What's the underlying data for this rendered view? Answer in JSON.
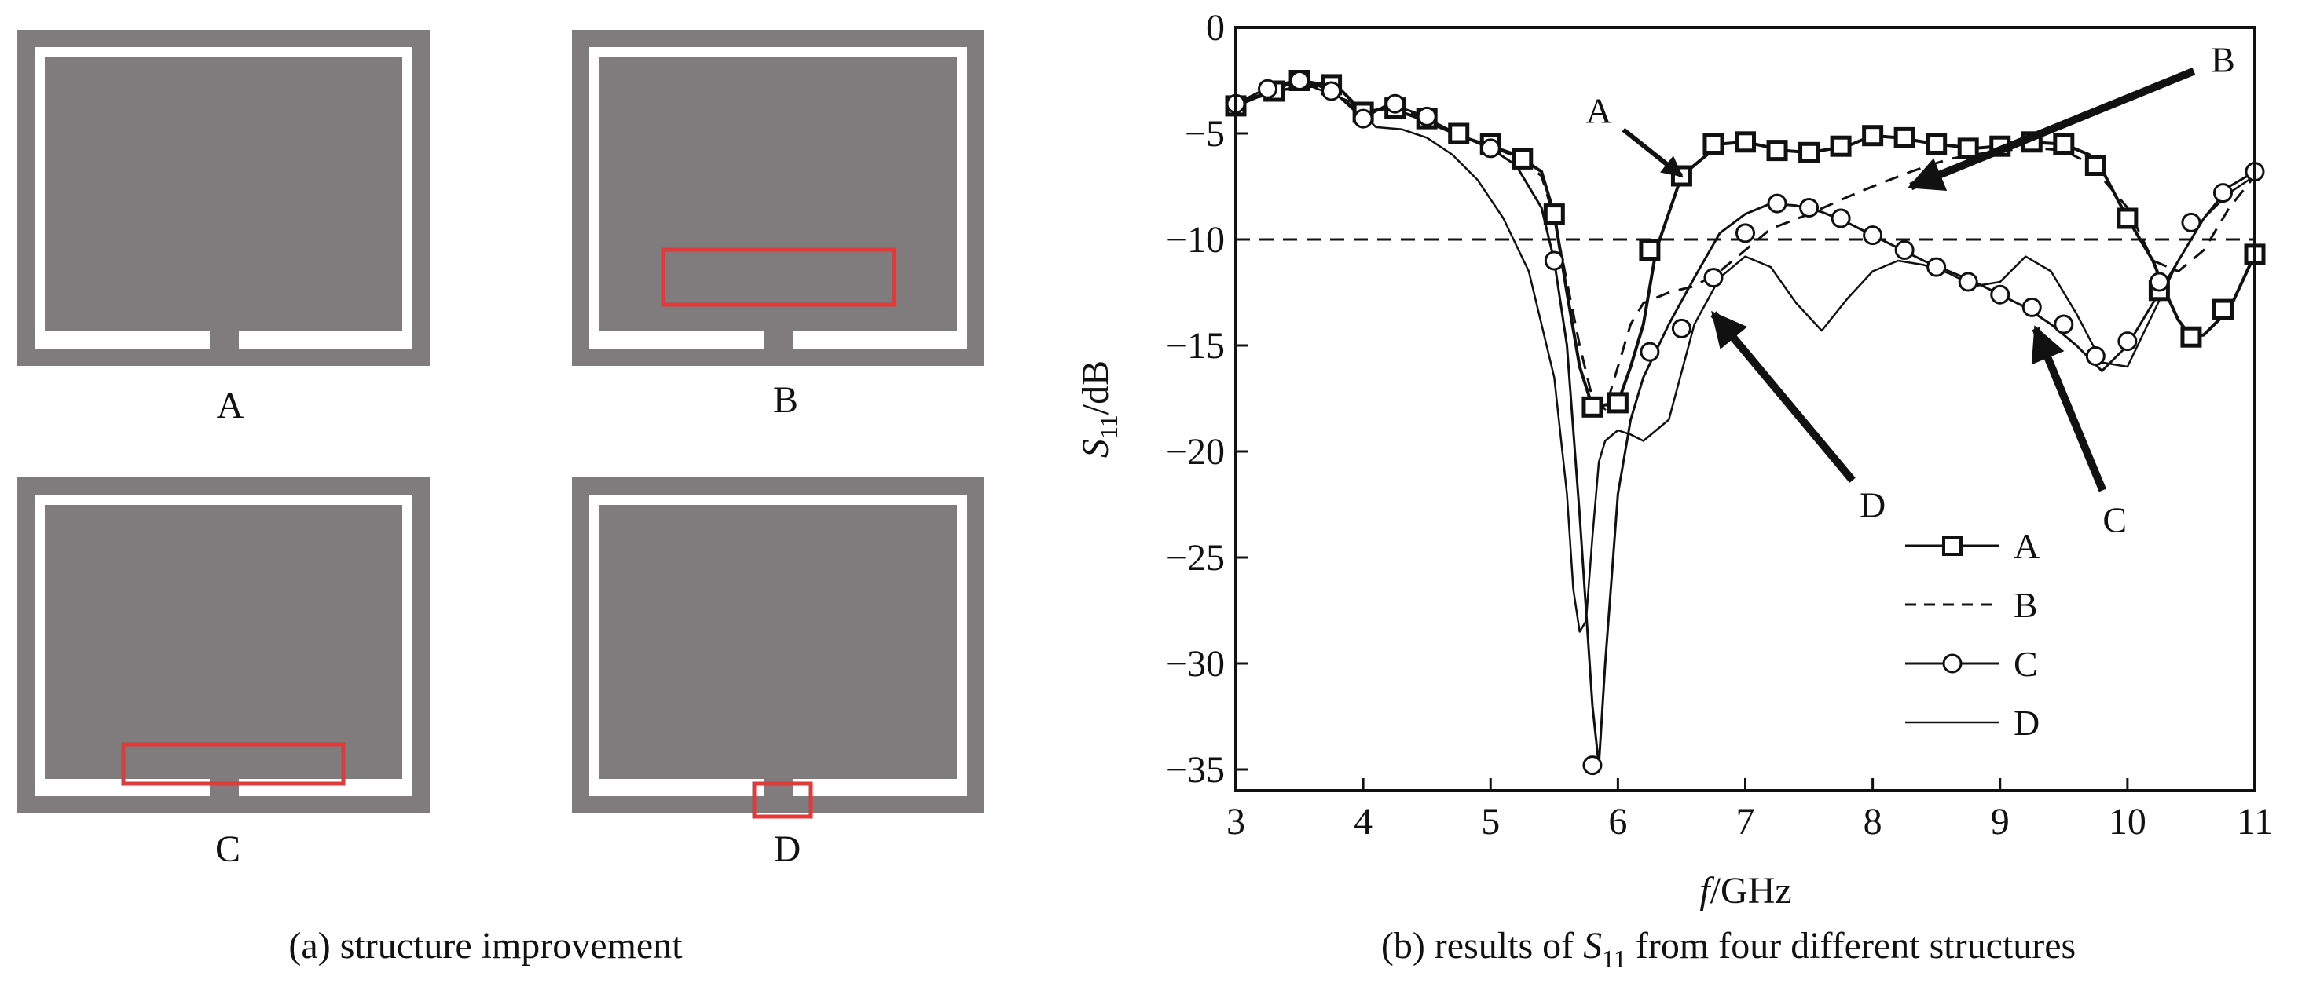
{
  "panel_a": {
    "caption": "(a) structure improvement",
    "structures": [
      {
        "label": "A",
        "highlight": "none"
      },
      {
        "label": "B",
        "highlight": "stubs on feed bar"
      },
      {
        "label": "C",
        "highlight": "split feed bar"
      },
      {
        "label": "D",
        "highlight": "feed gap"
      }
    ],
    "highlight_color": "#e03a3a",
    "antenna_color": "#807b7d"
  },
  "panel_b": {
    "caption_prefix": "(b) results of ",
    "caption_symbol": "S",
    "caption_sub": "11",
    "caption_suffix": " from four different structures"
  },
  "chart_data": {
    "type": "line",
    "xlabel_italic": "f",
    "xlabel_rest": "/GHz",
    "ylabel_italic": "S",
    "ylabel_sub": "11",
    "ylabel_rest": "/dB",
    "xlim": [
      3,
      11
    ],
    "ylim": [
      -36,
      0
    ],
    "x_ticks": [
      3,
      4,
      5,
      6,
      7,
      8,
      9,
      10,
      11
    ],
    "y_ticks": [
      0,
      -5,
      -10,
      -15,
      -20,
      -25,
      -30,
      -35
    ],
    "y_tick_labels": [
      "0",
      "−5",
      "−10",
      "−15",
      "−20",
      "−25",
      "−30",
      "−35"
    ],
    "grid": false,
    "reference_line": {
      "y": -10,
      "style": "dashed"
    },
    "legend_position": "bottom-right",
    "series": [
      {
        "name": "A",
        "style": "solid",
        "marker": "square",
        "x": [
          3.0,
          3.2,
          3.4,
          3.5,
          3.6,
          3.8,
          4.0,
          4.2,
          4.4,
          4.6,
          4.8,
          5.0,
          5.2,
          5.4,
          5.5,
          5.6,
          5.7,
          5.8,
          5.9,
          6.0,
          6.1,
          6.2,
          6.3,
          6.5,
          6.8,
          7.0,
          7.3,
          7.5,
          7.8,
          8.0,
          8.2,
          8.5,
          8.8,
          9.0,
          9.2,
          9.5,
          9.7,
          9.8,
          10.0,
          10.2,
          10.3,
          10.4,
          10.5,
          10.6,
          10.8,
          11.0
        ],
        "y": [
          -3.7,
          -3.2,
          -2.7,
          -2.5,
          -2.6,
          -2.8,
          -4.0,
          -3.8,
          -4.2,
          -4.7,
          -5.2,
          -5.6,
          -6.0,
          -6.8,
          -8.8,
          -12.5,
          -16.0,
          -17.9,
          -17.8,
          -17.7,
          -16.0,
          -14.0,
          -10.5,
          -7.0,
          -5.5,
          -5.4,
          -5.8,
          -5.9,
          -5.6,
          -5.1,
          -5.2,
          -5.5,
          -5.7,
          -5.6,
          -5.4,
          -5.5,
          -6.0,
          -6.7,
          -9.0,
          -11.0,
          -12.5,
          -13.8,
          -14.6,
          -14.5,
          -13.3,
          -10.7
        ],
        "marker_x": [
          3.0,
          3.3,
          3.5,
          3.75,
          4.0,
          4.25,
          4.5,
          4.75,
          5.0,
          5.25,
          5.5,
          5.8,
          6.0,
          6.25,
          6.5,
          6.75,
          7.0,
          7.25,
          7.5,
          7.75,
          8.0,
          8.25,
          8.5,
          8.75,
          9.0,
          9.25,
          9.5,
          9.75,
          10.0,
          10.25,
          10.5,
          10.75,
          11.0
        ],
        "marker_y": [
          -3.7,
          -3.0,
          -2.5,
          -2.7,
          -4.0,
          -3.8,
          -4.3,
          -5.0,
          -5.5,
          -6.2,
          -8.8,
          -17.9,
          -17.7,
          -10.5,
          -7.0,
          -5.5,
          -5.4,
          -5.8,
          -5.9,
          -5.6,
          -5.1,
          -5.2,
          -5.5,
          -5.7,
          -5.6,
          -5.4,
          -5.5,
          -6.5,
          -9.0,
          -12.4,
          -14.6,
          -13.3,
          -10.7
        ]
      },
      {
        "name": "B",
        "style": "dashed",
        "marker": "none",
        "x": [
          3.0,
          3.4,
          3.6,
          3.8,
          4.0,
          4.2,
          4.4,
          4.6,
          4.8,
          5.0,
          5.2,
          5.4,
          5.5,
          5.6,
          5.7,
          5.8,
          5.9,
          6.0,
          6.1,
          6.2,
          6.4,
          6.6,
          6.8,
          7.0,
          7.2,
          7.5,
          7.8,
          8.0,
          8.3,
          8.6,
          9.0,
          9.3,
          9.5,
          9.7,
          10.0,
          10.2,
          10.4,
          10.6,
          10.8,
          11.0
        ],
        "y": [
          -3.6,
          -2.9,
          -2.7,
          -3.2,
          -4.1,
          -3.7,
          -4.1,
          -4.6,
          -5.2,
          -5.6,
          -6.1,
          -7.0,
          -9.0,
          -12.0,
          -15.0,
          -17.5,
          -18.0,
          -16.0,
          -14.0,
          -13.0,
          -12.5,
          -12.2,
          -11.5,
          -10.5,
          -9.5,
          -8.8,
          -8.0,
          -7.5,
          -6.8,
          -6.2,
          -5.8,
          -5.7,
          -5.8,
          -6.4,
          -8.5,
          -11.0,
          -11.5,
          -10.5,
          -8.5,
          -7.0
        ]
      },
      {
        "name": "C",
        "style": "solid",
        "marker": "circle",
        "x": [
          3.0,
          3.2,
          3.4,
          3.5,
          3.6,
          3.8,
          4.0,
          4.2,
          4.4,
          4.6,
          4.8,
          5.0,
          5.2,
          5.4,
          5.5,
          5.6,
          5.7,
          5.8,
          5.85,
          5.9,
          6.0,
          6.1,
          6.2,
          6.4,
          6.6,
          6.8,
          7.0,
          7.2,
          7.4,
          7.6,
          7.8,
          8.0,
          8.2,
          8.4,
          8.6,
          8.8,
          9.0,
          9.2,
          9.4,
          9.6,
          9.8,
          10.0,
          10.2,
          10.4,
          10.6,
          10.8,
          11.0
        ],
        "y": [
          -3.6,
          -3.0,
          -2.6,
          -2.5,
          -2.6,
          -3.2,
          -4.3,
          -3.6,
          -4.0,
          -4.6,
          -5.2,
          -5.7,
          -6.5,
          -8.5,
          -11.0,
          -15.0,
          -23.0,
          -32.0,
          -34.8,
          -30.0,
          -22.0,
          -18.5,
          -16.5,
          -14.0,
          -11.8,
          -9.7,
          -8.8,
          -8.3,
          -8.4,
          -8.7,
          -9.2,
          -9.8,
          -10.4,
          -11.0,
          -11.5,
          -12.0,
          -12.6,
          -13.2,
          -14.0,
          -15.0,
          -16.2,
          -15.0,
          -13.0,
          -11.0,
          -9.0,
          -7.5,
          -6.8
        ],
        "marker_x": [
          3.0,
          3.25,
          3.5,
          3.75,
          4.0,
          4.25,
          4.5,
          5.0,
          5.5,
          5.8,
          6.25,
          6.5,
          6.75,
          7.0,
          7.25,
          7.5,
          7.75,
          8.0,
          8.25,
          8.5,
          8.75,
          9.0,
          9.25,
          9.5,
          9.75,
          10.0,
          10.25,
          10.5,
          10.75,
          11.0
        ],
        "marker_y": [
          -3.6,
          -2.9,
          -2.5,
          -3.0,
          -4.3,
          -3.6,
          -4.2,
          -5.7,
          -11.0,
          -34.8,
          -15.3,
          -14.2,
          -11.8,
          -9.7,
          -8.3,
          -8.5,
          -9.0,
          -9.8,
          -10.5,
          -11.3,
          -12.0,
          -12.6,
          -13.2,
          -14.0,
          -15.5,
          -14.8,
          -12.0,
          -9.2,
          -7.8,
          -6.8
        ]
      },
      {
        "name": "D",
        "style": "solid",
        "marker": "none",
        "x": [
          3.0,
          3.3,
          3.6,
          3.9,
          4.1,
          4.3,
          4.5,
          4.7,
          4.9,
          5.1,
          5.3,
          5.5,
          5.6,
          5.65,
          5.7,
          5.75,
          5.8,
          5.85,
          5.9,
          6.0,
          6.1,
          6.2,
          6.4,
          6.6,
          6.8,
          7.0,
          7.2,
          7.4,
          7.6,
          7.8,
          8.0,
          8.2,
          8.4,
          8.6,
          8.8,
          9.0,
          9.2,
          9.4,
          9.6,
          9.8,
          10.0,
          10.2,
          10.4,
          10.6,
          10.8,
          11.0
        ],
        "y": [
          -3.5,
          -3.0,
          -2.8,
          -3.5,
          -4.7,
          -4.8,
          -5.2,
          -6.0,
          -7.2,
          -9.0,
          -11.5,
          -16.5,
          -22.0,
          -26.5,
          -28.5,
          -28.0,
          -24.0,
          -20.5,
          -19.5,
          -19.0,
          -19.2,
          -19.5,
          -18.5,
          -14.0,
          -11.8,
          -10.8,
          -11.3,
          -13.0,
          -14.3,
          -12.8,
          -11.5,
          -11.0,
          -11.2,
          -11.6,
          -12.2,
          -12.0,
          -10.8,
          -11.5,
          -13.5,
          -15.8,
          -16.0,
          -13.5,
          -11.0,
          -9.0,
          -7.8,
          -7.0
        ]
      }
    ],
    "annotations": [
      {
        "label": "A",
        "target_x": 6.5,
        "target_y": -7.0,
        "text_x": 5.85,
        "text_y": -3.9
      },
      {
        "label": "B",
        "target_x": 8.3,
        "target_y": -7.5,
        "text_x": 10.75,
        "text_y": -1.5
      },
      {
        "label": "C",
        "target_x": 9.28,
        "target_y": -14.2,
        "text_x": 9.9,
        "text_y": -23.2
      },
      {
        "label": "D",
        "target_x": 6.75,
        "target_y": -13.5,
        "text_x": 8.0,
        "text_y": -22.5
      }
    ]
  }
}
